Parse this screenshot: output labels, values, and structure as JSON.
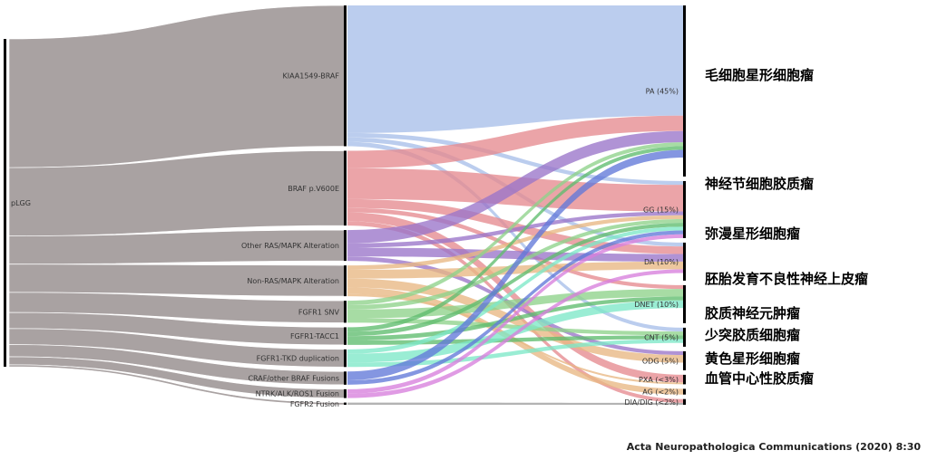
{
  "chart_data": {
    "type": "sankey",
    "title": "",
    "root": {
      "label": "pLGG"
    },
    "sources": [
      {
        "label": "KIAA1549-BRAF",
        "value": 32,
        "color": "#a8bfe9"
      },
      {
        "label": "BRAF p.V600E",
        "value": 17,
        "color": "#e68b8f"
      },
      {
        "label": "Other RAS/MAPK Alteration",
        "value": 7,
        "color": "#9a74c9"
      },
      {
        "label": "Non-RAS/MAPK Alteration",
        "value": 7,
        "color": "#e8b783"
      },
      {
        "label": "FGFR1 SNV",
        "value": 5,
        "color": "#8ed28a"
      },
      {
        "label": "FGFR1-TACC1",
        "value": 4,
        "color": "#5fbd6e"
      },
      {
        "label": "FGFR1-TKD duplication",
        "value": 4,
        "color": "#7de8c8"
      },
      {
        "label": "CRAF/other BRAF Fusions",
        "value": 3,
        "color": "#6179d9"
      },
      {
        "label": "NTRK/ALK/ROS1 Fusion",
        "value": 2,
        "color": "#d77fdc"
      },
      {
        "label": "FGFR2 Fusion",
        "value": 0.5,
        "color": "#9d9d9d"
      }
    ],
    "targets": [
      {
        "label": "PA (45%)",
        "cn": "毛细胞星形细胞瘤",
        "value": 45
      },
      {
        "label": "GG (15%)",
        "cn": "神经节细胞胶质瘤",
        "value": 15
      },
      {
        "label": "DA (10%)",
        "cn": "弥漫星形细胞瘤",
        "value": 10
      },
      {
        "label": "DNET (10%)",
        "cn": "胚胎发育不良性神经上皮瘤",
        "value": 10
      },
      {
        "label": "CNT (5%)",
        "cn": "胶质神经元肿瘤",
        "value": 5
      },
      {
        "label": "ODG (5%)",
        "cn": "少突胶质细胞瘤",
        "value": 5
      },
      {
        "label": "PXA (<3%)",
        "cn": "黄色星形细胞瘤",
        "value": 2.5
      },
      {
        "label": "AG (<2%)",
        "cn": "血管中心性胶质瘤",
        "value": 1.5
      },
      {
        "label": "DIA/DIG (<2%)",
        "cn": "",
        "value": 1.5
      }
    ],
    "flows": [
      {
        "source": 0,
        "target": 0,
        "value": 29
      },
      {
        "source": 0,
        "target": 1,
        "value": 1
      },
      {
        "source": 0,
        "target": 2,
        "value": 1
      },
      {
        "source": 0,
        "target": 4,
        "value": 1
      },
      {
        "source": 1,
        "target": 0,
        "value": 4
      },
      {
        "source": 1,
        "target": 1,
        "value": 7
      },
      {
        "source": 1,
        "target": 2,
        "value": 2
      },
      {
        "source": 1,
        "target": 3,
        "value": 1
      },
      {
        "source": 1,
        "target": 6,
        "value": 2
      },
      {
        "source": 1,
        "target": 8,
        "value": 1
      },
      {
        "source": 2,
        "target": 0,
        "value": 3
      },
      {
        "source": 2,
        "target": 1,
        "value": 1
      },
      {
        "source": 2,
        "target": 2,
        "value": 2
      },
      {
        "source": 2,
        "target": 5,
        "value": 1
      },
      {
        "source": 3,
        "target": 1,
        "value": 1
      },
      {
        "source": 3,
        "target": 2,
        "value": 2
      },
      {
        "source": 3,
        "target": 5,
        "value": 2
      },
      {
        "source": 3,
        "target": 7,
        "value": 1.5
      },
      {
        "source": 3,
        "target": 6,
        "value": 0.5
      },
      {
        "source": 4,
        "target": 0,
        "value": 1
      },
      {
        "source": 4,
        "target": 1,
        "value": 1
      },
      {
        "source": 4,
        "target": 3,
        "value": 2
      },
      {
        "source": 4,
        "target": 4,
        "value": 1
      },
      {
        "source": 5,
        "target": 0,
        "value": 1
      },
      {
        "source": 5,
        "target": 1,
        "value": 1
      },
      {
        "source": 5,
        "target": 3,
        "value": 1
      },
      {
        "source": 5,
        "target": 4,
        "value": 1
      },
      {
        "source": 6,
        "target": 1,
        "value": 1
      },
      {
        "source": 6,
        "target": 3,
        "value": 2
      },
      {
        "source": 6,
        "target": 4,
        "value": 1
      },
      {
        "source": 7,
        "target": 0,
        "value": 2
      },
      {
        "source": 7,
        "target": 1,
        "value": 1
      },
      {
        "source": 8,
        "target": 1,
        "value": 1
      },
      {
        "source": 8,
        "target": 2,
        "value": 1
      },
      {
        "source": 9,
        "target": 8,
        "value": 0.5
      }
    ],
    "root_color": "#a9a2a2",
    "bar_color": "#000000"
  },
  "citation": "Acta Neuropathologica Communications (2020) 8:30"
}
